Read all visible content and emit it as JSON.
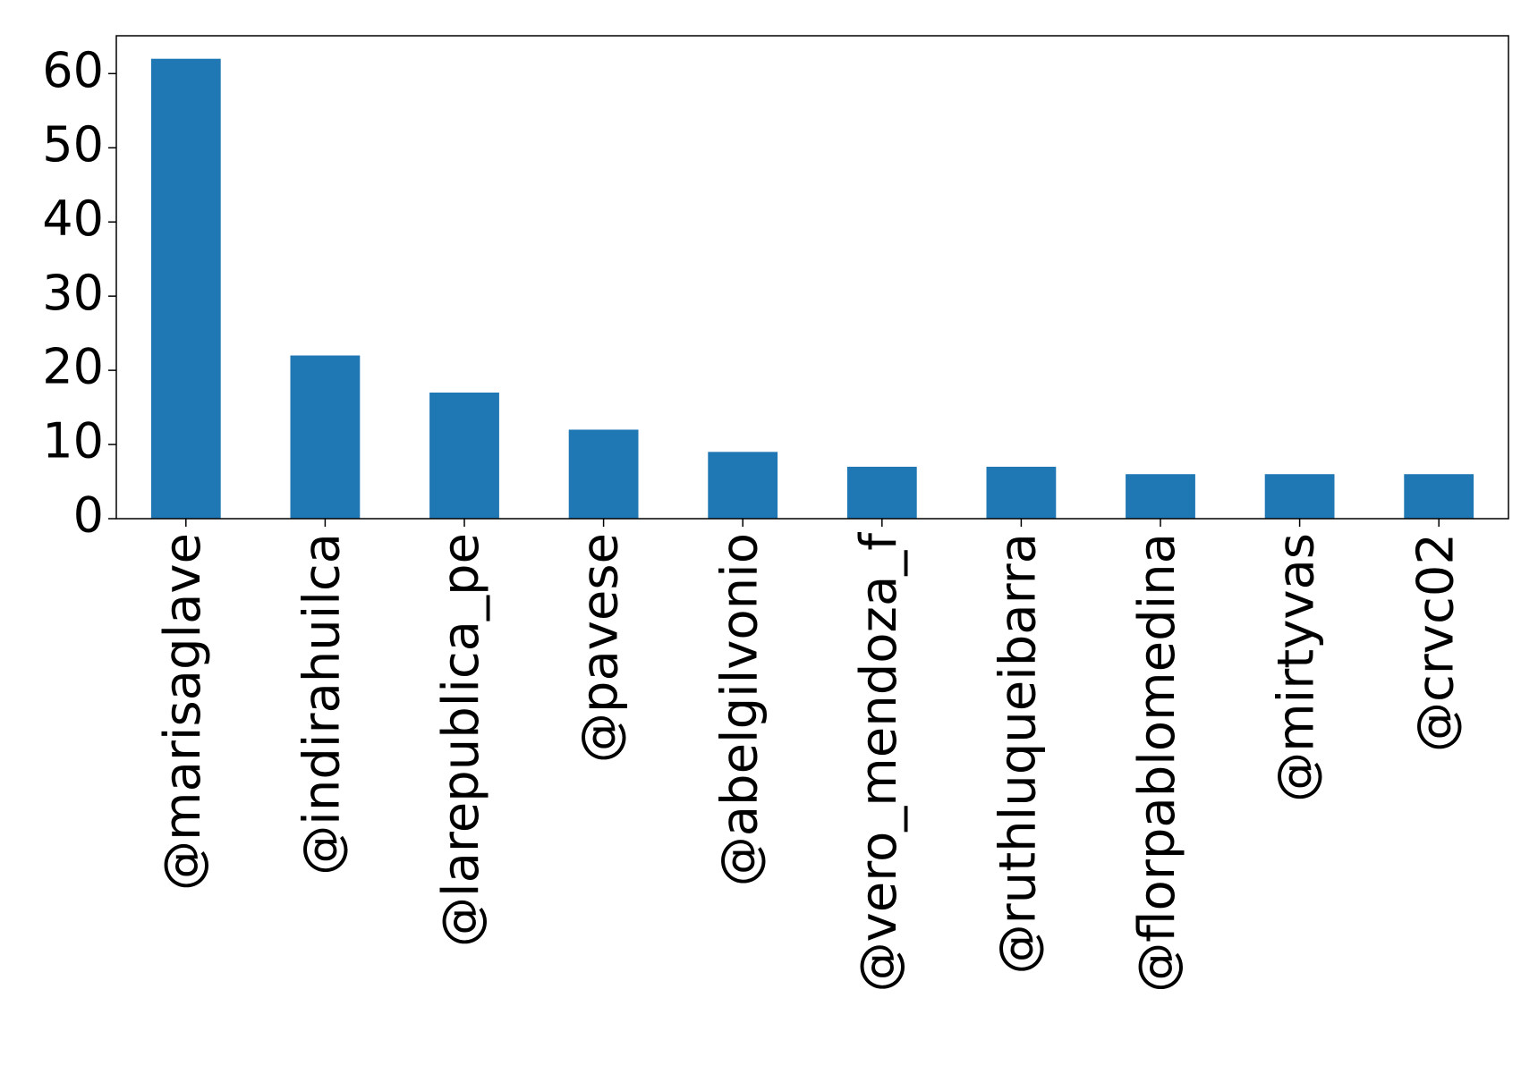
{
  "chart_data": {
    "type": "bar",
    "categories": [
      "@marisaglave",
      "@indirahuilca",
      "@larepublica_pe",
      "@pavese",
      "@abelgilvonio",
      "@vero_mendoza_f",
      "@ruthluqueibarra",
      "@florpablomedina",
      "@mirtyvas",
      "@crvc02"
    ],
    "values": [
      62,
      22,
      17,
      12,
      9,
      7,
      7,
      6,
      6,
      6
    ],
    "color": "#1f77b4",
    "ylim": [
      0,
      65.1
    ],
    "yticks": [
      0,
      10,
      20,
      30,
      40,
      50,
      60
    ],
    "grid": false
  }
}
